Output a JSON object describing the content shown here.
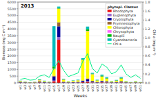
{
  "chart_data": {
    "type": "bar",
    "stacked": true,
    "title": "2013",
    "xlabel": "Weeks",
    "ylabel": "Biomass (mg C m⁻³)",
    "y2label": "Chl a (mg m⁻³)",
    "legend_title": "phytopl. Classes",
    "legend": "upper right",
    "grid": true,
    "categories": [
      "w1",
      "w3",
      "w5",
      "w7",
      "w9",
      "w11",
      "w13",
      "w15",
      "w17",
      "w19",
      "w21",
      "w23",
      "w25",
      "w27",
      "w29",
      "w31",
      "w33",
      "w35",
      "w37",
      "w39",
      "w41",
      "w43",
      "w45",
      "w47",
      "w49",
      "w51"
    ],
    "series": [
      {
        "name": "Rhodophyta",
        "color": "#EE1111",
        "values": [
          20,
          10,
          5,
          8,
          30,
          15,
          10,
          120,
          3200,
          20,
          10,
          15,
          20,
          50,
          80,
          30,
          20,
          40,
          30,
          10,
          20,
          30,
          10,
          5,
          10,
          5
        ]
      },
      {
        "name": "Euglenophyta",
        "color": "#9966CC",
        "values": [
          10,
          5,
          3,
          5,
          10,
          8,
          5,
          50,
          200,
          10,
          5,
          8,
          10,
          20,
          40,
          20,
          10,
          20,
          15,
          8,
          10,
          15,
          8,
          3,
          5,
          3
        ]
      },
      {
        "name": "Cryptophyta",
        "color": "#000099",
        "values": [
          30,
          20,
          10,
          15,
          50,
          30,
          20,
          300,
          800,
          40,
          20,
          30,
          40,
          80,
          150,
          60,
          30,
          70,
          50,
          20,
          30,
          50,
          20,
          10,
          20,
          10
        ]
      },
      {
        "name": "Prymnesiophyta",
        "color": "#996633",
        "values": [
          15,
          10,
          5,
          8,
          20,
          12,
          8,
          60,
          300,
          15,
          8,
          12,
          15,
          30,
          60,
          25,
          15,
          30,
          20,
          8,
          15,
          20,
          8,
          4,
          8,
          4
        ]
      },
      {
        "name": "Chlorophyta",
        "color": "#FFFF00",
        "values": [
          50,
          30,
          15,
          25,
          80,
          50,
          30,
          500,
          1000,
          150,
          50,
          80,
          100,
          1500,
          3500,
          500,
          100,
          300,
          200,
          50,
          80,
          200,
          50,
          20,
          50,
          20
        ]
      },
      {
        "name": "Chrysophyta",
        "color": "#FF66FF",
        "values": [
          8,
          5,
          2,
          4,
          12,
          8,
          5,
          30,
          15,
          8,
          4,
          6,
          8,
          15,
          30,
          12,
          8,
          15,
          10,
          4,
          8,
          10,
          4,
          2,
          4,
          2
        ]
      },
      {
        "name": "Nauplii",
        "color": "#00BB00",
        "values": [
          20,
          15,
          8,
          12,
          40,
          25,
          15,
          150,
          50,
          25,
          10,
          15,
          20,
          60,
          120,
          40,
          20,
          60,
          40,
          15,
          25,
          40,
          15,
          8,
          15,
          8
        ]
      },
      {
        "name": "Cyanobacteria",
        "color": "#00BBBB",
        "values": [
          10,
          8,
          4,
          6,
          20,
          15,
          8,
          3000,
          100,
          40,
          15,
          20,
          30,
          80,
          200,
          60,
          30,
          80,
          60,
          20,
          30,
          60,
          20,
          10,
          20,
          10
        ]
      },
      {
        "name": "Chl a",
        "type": "line",
        "axis": "y2",
        "color": "#00EE88",
        "values": [
          0.08,
          0.1,
          0.06,
          0.07,
          0.15,
          0.18,
          0.12,
          0.32,
          0.5,
          0.28,
          0.14,
          0.18,
          0.22,
          0.48,
          0.65,
          0.32,
          0.22,
          0.42,
          0.35,
          0.2,
          0.25,
          0.4,
          0.2,
          0.12,
          0.18,
          0.1
        ]
      }
    ],
    "ylim": [
      0,
      6000
    ],
    "yticks": [
      0,
      500,
      1000,
      1500,
      2000,
      2500,
      3000,
      3500,
      4000,
      4500,
      5000,
      5500,
      6000
    ],
    "y2lim": [
      0,
      1.8
    ],
    "y2ticks": [
      {
        "value": 0,
        "label": "0.0"
      },
      0.2,
      0.4,
      0.6,
      0.8,
      {
        "value": 1,
        "label": "1.0"
      },
      1.2,
      1.4,
      1.6,
      1.8
    ]
  }
}
